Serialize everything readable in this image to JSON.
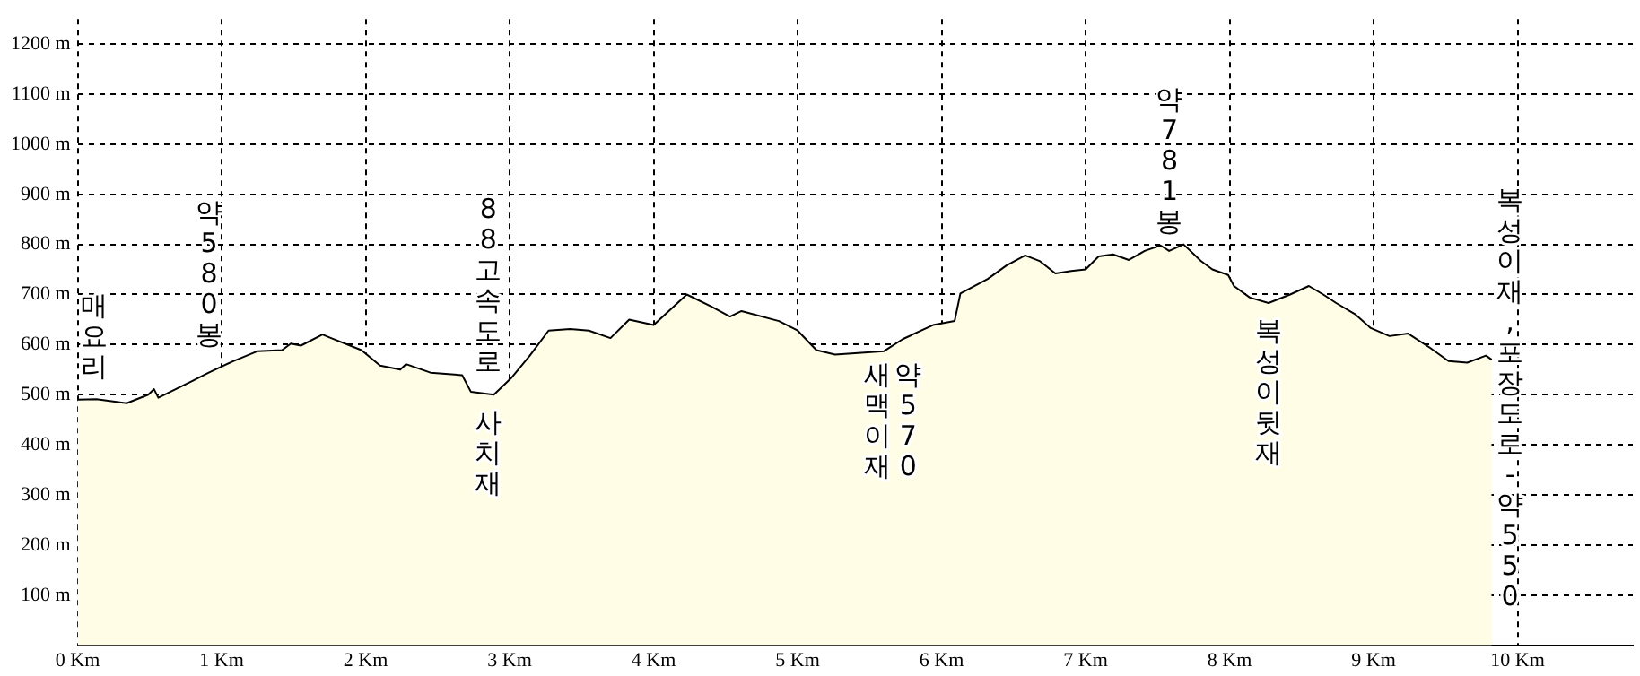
{
  "chart_data": {
    "type": "area",
    "grid": true,
    "legend": false,
    "marker": "none",
    "xlim": [
      0,
      10.8
    ],
    "ylim": [
      0,
      1250
    ],
    "xticks": [
      {
        "value": 0,
        "label": "0 Km"
      },
      {
        "value": 1,
        "label": "1 Km"
      },
      {
        "value": 2,
        "label": "2 Km"
      },
      {
        "value": 3,
        "label": "3 Km"
      },
      {
        "value": 4,
        "label": "4 Km"
      },
      {
        "value": 5,
        "label": "5 Km"
      },
      {
        "value": 6,
        "label": "6 Km"
      },
      {
        "value": 7,
        "label": "7 Km"
      },
      {
        "value": 8,
        "label": "8 Km"
      },
      {
        "value": 9,
        "label": "9 Km"
      },
      {
        "value": 10,
        "label": "10 Km"
      }
    ],
    "yticks": [
      {
        "value": 100,
        "label": "100 m"
      },
      {
        "value": 200,
        "label": "200 m"
      },
      {
        "value": 300,
        "label": "300 m"
      },
      {
        "value": 400,
        "label": "400 m"
      },
      {
        "value": 500,
        "label": "500 m"
      },
      {
        "value": 600,
        "label": "600 m"
      },
      {
        "value": 700,
        "label": "700 m"
      },
      {
        "value": 800,
        "label": "800 m"
      },
      {
        "value": 900,
        "label": "900 m"
      },
      {
        "value": 1000,
        "label": "1000 m"
      },
      {
        "value": 1100,
        "label": "1100 m"
      },
      {
        "value": 1200,
        "label": "1200 m"
      }
    ],
    "series": [
      {
        "color": "#fffde6",
        "x": [
          0,
          0.13,
          0.34,
          0.49,
          0.53,
          0.56,
          0.8,
          0.91,
          1.08,
          1.25,
          1.42,
          1.48,
          1.55,
          1.7,
          1.76,
          1.97,
          2.1,
          2.24,
          2.28,
          2.45,
          2.67,
          2.73,
          2.89,
          3.01,
          3.14,
          3.27,
          3.42,
          3.55,
          3.7,
          3.83,
          4.0,
          4.23,
          4.4,
          4.53,
          4.61,
          4.87,
          5.0,
          5.13,
          5.26,
          5.6,
          5.73,
          5.94,
          6.09,
          6.13,
          6.32,
          6.45,
          6.58,
          6.68,
          6.79,
          6.9,
          7.0,
          7.09,
          7.19,
          7.3,
          7.41,
          7.52,
          7.58,
          7.68,
          7.8,
          7.88,
          7.99,
          8.03,
          8.14,
          8.27,
          8.42,
          8.55,
          8.65,
          8.74,
          8.87,
          8.98,
          9.11,
          9.24,
          9.39,
          9.52,
          9.65,
          9.78,
          9.82
        ],
        "values": [
          490,
          491,
          483,
          500,
          511,
          494,
          528,
          544,
          567,
          587,
          589,
          602,
          598,
          620,
          613,
          589,
          558,
          550,
          561,
          544,
          539,
          506,
          500,
          533,
          578,
          628,
          631,
          628,
          613,
          650,
          639,
          700,
          676,
          656,
          667,
          647,
          628,
          589,
          580,
          587,
          611,
          639,
          647,
          702,
          731,
          758,
          778,
          767,
          742,
          747,
          750,
          776,
          780,
          769,
          787,
          798,
          787,
          800,
          767,
          750,
          739,
          717,
          694,
          683,
          700,
          717,
          700,
          683,
          661,
          633,
          617,
          622,
          594,
          567,
          564,
          578,
          570
        ]
      }
    ],
    "annotations": [
      "매요리",
      "약580봉",
      "88고속도로 사치재",
      "새맥이재",
      "약570",
      "약781봉",
      "복성이뒷재",
      "복성이재,포장도로-약550"
    ]
  }
}
